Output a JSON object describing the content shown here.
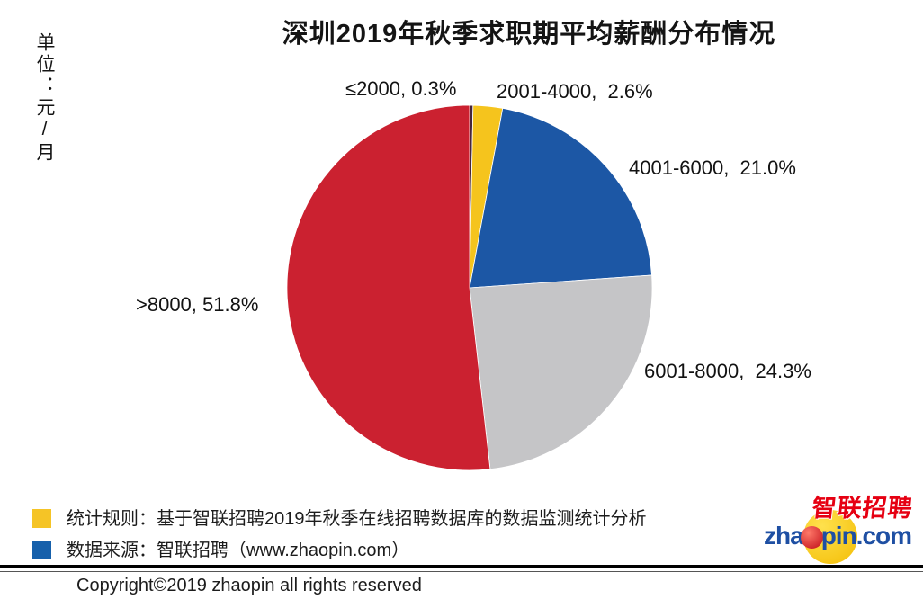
{
  "title": "深圳2019年秋季求职期平均薪酬分布情况",
  "unit_label": "单位：元/月",
  "chart_data": {
    "type": "pie",
    "title": "深圳2019年秋季求职期平均薪酬分布情况",
    "unit": "元/月",
    "start_angle_deg": 0,
    "direction": "clockwise",
    "slices": [
      {
        "label": "≤2000",
        "value": 0.3,
        "color": "#46253a",
        "display": "≤2000, 0.3%"
      },
      {
        "label": "2001-4000",
        "value": 2.6,
        "color": "#f5c41d",
        "display": "2001-4000,  2.6%"
      },
      {
        "label": "4001-6000",
        "value": 21.0,
        "color": "#1c57a5",
        "display": "4001-6000,  21.0%"
      },
      {
        "label": "6001-8000",
        "value": 24.3,
        "color": "#c5c5c7",
        "display": "6001-8000,  24.3%"
      },
      {
        "label": ">8000",
        "value": 51.8,
        "color": "#cb2130",
        "display": ">8000, 51.8%"
      }
    ]
  },
  "legend": {
    "items": [
      {
        "color": "#f5c426",
        "text": "统计规则：基于智联招聘2019年秋季在线招聘数据库的数据监测统计分析"
      },
      {
        "color": "#1660ab",
        "text": "数据来源：智联招聘（www.zhaopin.com）"
      }
    ]
  },
  "footer": {
    "copyright": "Copyright©2019 zhaopin all rights reserved"
  },
  "logo": {
    "latin_part1": "zha",
    "latin_part2": "pin.com",
    "cn_text": "智联招聘",
    "blue": "#1e4fa3",
    "red": "#e60012"
  }
}
